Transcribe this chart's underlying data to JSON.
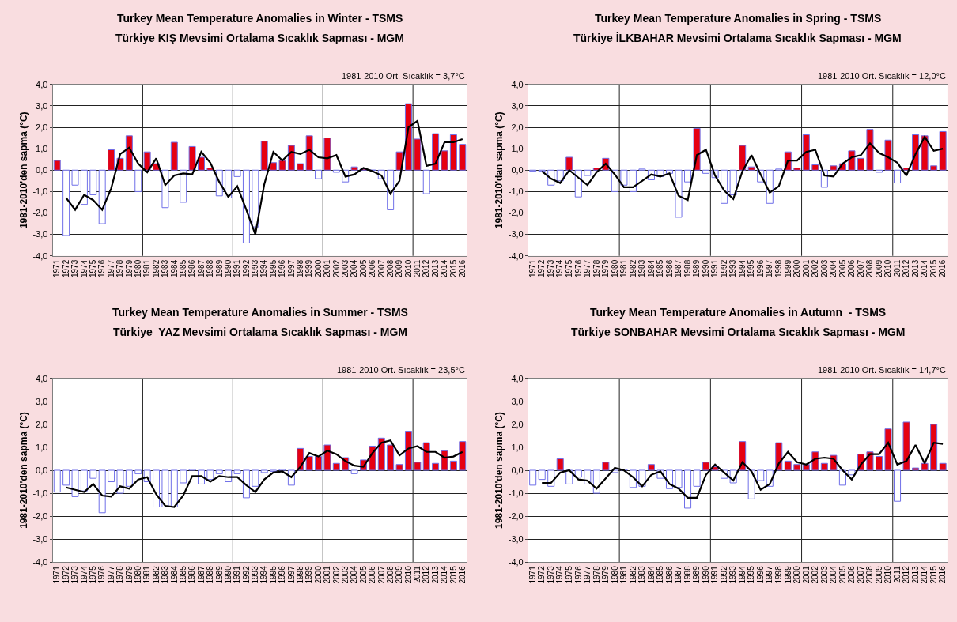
{
  "chart_data": [
    {
      "type": "bar",
      "title": "Turkey Mean Temperature Anomalies in Winter - TSMS",
      "subtitle": "Türkiye KIŞ Mevsimi Ortalama Sıcaklık Sapması - MGM",
      "ylabel": "1981-2010'den sapma (°C)",
      "annotations": [
        "1981-2010 Ort. Sıcaklık = 3,7°C"
      ],
      "categories": [
        "1971",
        "1972",
        "1973",
        "1974",
        "1975",
        "1976",
        "1977",
        "1978",
        "1979",
        "1980",
        "1981",
        "1982",
        "1983",
        "1984",
        "1985",
        "1986",
        "1987",
        "1988",
        "1989",
        "1990",
        "1991",
        "1992",
        "1993",
        "1994",
        "1995",
        "1996",
        "1997",
        "1998",
        "1999",
        "2000",
        "2001",
        "2002",
        "2003",
        "2004",
        "2005",
        "2006",
        "2007",
        "2008",
        "2009",
        "2010",
        "2011",
        "2012",
        "2013",
        "2014",
        "2015",
        "2016"
      ],
      "series": [
        {
          "values": [
            0.45,
            -3.05,
            -0.7,
            -1.6,
            -1.15,
            -2.5,
            0.95,
            0.55,
            1.6,
            -1.0,
            0.85,
            0.3,
            -1.75,
            1.3,
            -1.5,
            1.1,
            0.6,
            0.1,
            -1.2,
            -1.3,
            -0.3,
            -3.4,
            -2.65,
            1.35,
            0.35,
            0.45,
            1.15,
            0.3,
            1.6,
            -0.4,
            1.5,
            -0.1,
            -0.55,
            0.15,
            0.05,
            0.0,
            -0.4,
            -1.85,
            0.85,
            3.1,
            1.45,
            -1.1,
            1.7,
            0.9,
            1.65,
            1.2
          ],
          "colors": [
            "#e60012",
            "#ffffff",
            "#ffffff",
            "#ffffff",
            "#ffffff",
            "#ffffff",
            "#e60012",
            "#e60012",
            "#e60012",
            "#ffffff",
            "#e60012",
            "#e60012",
            "#ffffff",
            "#e60012",
            "#ffffff",
            "#e60012",
            "#e60012",
            "#e60012",
            "#ffffff",
            "#ffffff",
            "#ffffff",
            "#ffffff",
            "#ffffff",
            "#e60012",
            "#e60012",
            "#e60012",
            "#e60012",
            "#e60012",
            "#e60012",
            "#ffffff",
            "#e60012",
            "#ffffff",
            "#ffffff",
            "#e60012",
            "#e60012",
            "#6f6fe8",
            "#ffffff",
            "#ffffff",
            "#e60012",
            "#e60012",
            "#e60012",
            "#ffffff",
            "#e60012",
            "#e60012",
            "#e60012",
            "#e60012"
          ]
        },
        {
          "type": "line",
          "color": "#000000",
          "values": [
            null,
            -1.3,
            -1.85,
            -1.15,
            -1.4,
            -1.85,
            -0.85,
            0.75,
            1.05,
            0.3,
            -0.1,
            0.55,
            -0.7,
            -0.25,
            -0.15,
            -0.2,
            0.85,
            0.35,
            -0.55,
            -1.25,
            -0.75,
            -1.85,
            -3.0,
            -0.65,
            0.85,
            0.45,
            0.85,
            0.75,
            0.95,
            0.6,
            0.55,
            0.7,
            -0.3,
            -0.2,
            0.1,
            -0.05,
            -0.25,
            -1.1,
            -0.5,
            2.0,
            2.3,
            0.2,
            0.3,
            1.3,
            1.3,
            1.45
          ]
        }
      ],
      "ylim": [
        -4,
        4
      ],
      "yticks": [
        {
          "value": 4,
          "label": "4,0"
        },
        {
          "value": 3,
          "label": "3,0"
        },
        {
          "value": 2,
          "label": "2,0"
        },
        {
          "value": 1,
          "label": "1,0"
        },
        {
          "value": 0,
          "label": "0,0"
        },
        {
          "value": -1,
          "label": "-1,0"
        },
        {
          "value": -2,
          "label": "-2,0"
        },
        {
          "value": -3,
          "label": "-3,0"
        },
        {
          "value": -4,
          "label": "-4,0"
        }
      ],
      "grid": true,
      "marker": "none",
      "line_style": "solid"
    },
    {
      "type": "bar",
      "title": "Turkey Mean Temperature Anomalies in Spring - TSMS",
      "subtitle": "Türkiye İLKBAHAR Mevsimi Ortalama Sıcaklık Sapması - MGM",
      "ylabel": "1981-2010'dan sapma (°C)",
      "annotations": [
        "1981-2010 Ort. Sıcaklık = 12,0°C"
      ],
      "categories": [
        "1971",
        "1972",
        "1973",
        "1974",
        "1975",
        "1976",
        "1977",
        "1978",
        "1979",
        "1980",
        "1981",
        "1982",
        "1983",
        "1984",
        "1985",
        "1986",
        "1987",
        "1988",
        "1989",
        "1990",
        "1991",
        "1992",
        "1993",
        "1994",
        "1995",
        "1996",
        "1997",
        "1998",
        "1999",
        "2000",
        "2001",
        "2002",
        "2003",
        "2004",
        "2005",
        "2006",
        "2007",
        "2008",
        "2009",
        "2010",
        "2011",
        "2012",
        "2013",
        "2014",
        "2015",
        "2016"
      ],
      "series": [
        {
          "values": [
            -0.05,
            -0.05,
            -0.7,
            -0.5,
            0.6,
            -1.25,
            -0.25,
            0.1,
            0.55,
            -1.0,
            -0.7,
            -1.0,
            0.05,
            -0.45,
            -0.3,
            -0.15,
            -2.2,
            -0.55,
            1.95,
            -0.15,
            -0.35,
            -1.55,
            -1.15,
            1.15,
            0.15,
            -0.55,
            -1.55,
            0.05,
            0.85,
            0.1,
            1.65,
            0.25,
            -0.8,
            0.2,
            0.3,
            0.9,
            0.55,
            1.9,
            -0.1,
            1.4,
            -0.6,
            0.1,
            1.65,
            1.6,
            0.2,
            1.8
          ],
          "colors": [
            "#ffffff",
            "#ffffff",
            "#ffffff",
            "#ffffff",
            "#e60012",
            "#ffffff",
            "#ffffff",
            "#e60012",
            "#e60012",
            "#ffffff",
            "#ffffff",
            "#ffffff",
            "#ffffff",
            "#ffffff",
            "#ffffff",
            "#ffffff",
            "#ffffff",
            "#ffffff",
            "#e60012",
            "#ffffff",
            "#ffffff",
            "#ffffff",
            "#ffffff",
            "#e60012",
            "#e60012",
            "#ffffff",
            "#ffffff",
            "#ffffff",
            "#e60012",
            "#e60012",
            "#e60012",
            "#e60012",
            "#ffffff",
            "#e60012",
            "#e60012",
            "#e60012",
            "#e60012",
            "#e60012",
            "#ffffff",
            "#e60012",
            "#ffffff",
            "#e60012",
            "#e60012",
            "#e60012",
            "#e60012",
            "#e60012"
          ]
        },
        {
          "type": "line",
          "color": "#000000",
          "values": [
            null,
            -0.05,
            -0.4,
            -0.6,
            0.0,
            -0.35,
            -0.7,
            -0.1,
            0.3,
            -0.2,
            -0.8,
            -0.8,
            -0.5,
            -0.2,
            -0.3,
            -0.15,
            -1.2,
            -1.4,
            0.7,
            0.95,
            -0.25,
            -0.95,
            -1.35,
            -0.05,
            0.7,
            -0.2,
            -1.05,
            -0.75,
            0.45,
            0.45,
            0.85,
            0.95,
            -0.25,
            -0.3,
            0.3,
            0.6,
            0.7,
            1.25,
            0.8,
            0.6,
            0.35,
            -0.25,
            0.75,
            1.55,
            0.9,
            1.0
          ]
        }
      ],
      "ylim": [
        -4,
        4
      ],
      "yticks": [
        {
          "value": 4,
          "label": "4,0"
        },
        {
          "value": 3,
          "label": "3,0"
        },
        {
          "value": 2,
          "label": "2,0"
        },
        {
          "value": 1,
          "label": "1,0"
        },
        {
          "value": 0,
          "label": "0,0"
        },
        {
          "value": -1,
          "label": "-1,0"
        },
        {
          "value": -2,
          "label": "-2,0"
        },
        {
          "value": -3,
          "label": "-3,0"
        },
        {
          "value": -4,
          "label": "-4,0"
        }
      ],
      "grid": true,
      "marker": "none",
      "line_style": "solid"
    },
    {
      "type": "bar",
      "title": "Turkey Mean Temperature Anomalies in Summer - TSMS",
      "subtitle": "Türkiye  YAZ Mevsimi Ortalama Sıcaklık Sapması - MGM",
      "ylabel": "1981-2010'den sapma (°C)",
      "annotations": [
        "1981-2010 Ort. Sıcaklık = 23,5°C"
      ],
      "categories": [
        "1971",
        "1972",
        "1973",
        "1974",
        "1975",
        "1976",
        "1977",
        "1978",
        "1979",
        "1980",
        "1981",
        "1982",
        "1983",
        "1984",
        "1985",
        "1986",
        "1987",
        "1988",
        "1989",
        "1990",
        "1991",
        "1992",
        "1993",
        "1994",
        "1995",
        "1996",
        "1997",
        "1998",
        "1999",
        "2000",
        "2001",
        "2002",
        "2003",
        "2004",
        "2005",
        "2006",
        "2007",
        "2008",
        "2009",
        "2010",
        "2011",
        "2012",
        "2013",
        "2014",
        "2015",
        "2016"
      ],
      "series": [
        {
          "values": [
            -0.95,
            -0.65,
            -1.15,
            -0.9,
            -0.35,
            -1.85,
            -0.5,
            -1.0,
            -0.7,
            -0.15,
            -0.5,
            -1.6,
            -1.6,
            -1.6,
            -0.55,
            0.05,
            -0.6,
            -0.4,
            -0.15,
            -0.5,
            -0.15,
            -1.2,
            -0.7,
            -0.1,
            -0.05,
            0.05,
            -0.65,
            0.95,
            0.6,
            0.6,
            1.1,
            0.3,
            0.55,
            -0.15,
            0.45,
            1.05,
            1.4,
            1.1,
            0.25,
            1.7,
            0.35,
            1.2,
            0.3,
            0.85,
            0.4,
            1.25
          ],
          "colors": [
            "#ffffff",
            "#ffffff",
            "#ffffff",
            "#ffffff",
            "#ffffff",
            "#ffffff",
            "#ffffff",
            "#ffffff",
            "#ffffff",
            "#ffffff",
            "#ffffff",
            "#ffffff",
            "#ffffff",
            "#ffffff",
            "#ffffff",
            "#ffffff",
            "#ffffff",
            "#ffffff",
            "#ffffff",
            "#ffffff",
            "#ffffff",
            "#ffffff",
            "#ffffff",
            "#ffffff",
            "#ffffff",
            "#ffffff",
            "#ffffff",
            "#e60012",
            "#e60012",
            "#e60012",
            "#e60012",
            "#e60012",
            "#e60012",
            "#ffffff",
            "#e60012",
            "#e60012",
            "#e60012",
            "#e60012",
            "#e60012",
            "#e60012",
            "#e60012",
            "#e60012",
            "#e60012",
            "#e60012",
            "#e60012",
            "#e60012"
          ]
        },
        {
          "type": "line",
          "color": "#000000",
          "values": [
            null,
            -0.75,
            -0.85,
            -0.95,
            -0.6,
            -1.1,
            -1.15,
            -0.7,
            -0.8,
            -0.4,
            -0.3,
            -1.05,
            -1.55,
            -1.6,
            -1.1,
            -0.25,
            -0.25,
            -0.5,
            -0.25,
            -0.3,
            -0.3,
            -0.65,
            -0.95,
            -0.4,
            -0.1,
            -0.05,
            -0.3,
            0.15,
            0.75,
            0.6,
            0.85,
            0.7,
            0.4,
            0.2,
            0.15,
            0.75,
            1.2,
            1.3,
            0.65,
            0.95,
            1.05,
            0.8,
            0.8,
            0.55,
            0.6,
            0.8
          ]
        }
      ],
      "ylim": [
        -4,
        4
      ],
      "yticks": [
        {
          "value": 4,
          "label": "4,0"
        },
        {
          "value": 3,
          "label": "3,0"
        },
        {
          "value": 2,
          "label": "2,0"
        },
        {
          "value": 1,
          "label": "1,0"
        },
        {
          "value": 0,
          "label": "0,0"
        },
        {
          "value": -1,
          "label": "-1,0"
        },
        {
          "value": -2,
          "label": "-2,0"
        },
        {
          "value": -3,
          "label": "-3,0"
        },
        {
          "value": -4,
          "label": "-4,0"
        }
      ],
      "grid": true,
      "marker": "none",
      "line_style": "solid"
    },
    {
      "type": "bar",
      "title": "Turkey Mean Temperature Anomalies in Autumn  - TSMS",
      "subtitle": "Türkiye SONBAHAR Mevsimi Ortalama Sıcaklık Sapması - MGM",
      "ylabel": "1981-2010'den sapma (°C)",
      "annotations": [
        "1981-2010 Ort. Sıcaklık = 14,7°C"
      ],
      "categories": [
        "1971",
        "1972",
        "1973",
        "1974",
        "1975",
        "1976",
        "1977",
        "1978",
        "1979",
        "1980",
        "1981",
        "1982",
        "1983",
        "1984",
        "1985",
        "1986",
        "1987",
        "1988",
        "1989",
        "1990",
        "1991",
        "1992",
        "1993",
        "1994",
        "1995",
        "1996",
        "1997",
        "1998",
        "1999",
        "2000",
        "2001",
        "2002",
        "2003",
        "2004",
        "2005",
        "2006",
        "2007",
        "2008",
        "2009",
        "2010",
        "2011",
        "2012",
        "2013",
        "2014",
        "2015",
        "2016"
      ],
      "series": [
        {
          "values": [
            -0.65,
            -0.4,
            -0.7,
            0.5,
            -0.6,
            -0.3,
            -0.6,
            -1.0,
            0.35,
            -0.1,
            0.05,
            -0.75,
            -0.7,
            0.25,
            -0.35,
            -0.8,
            -0.75,
            -1.65,
            -0.7,
            0.35,
            0.15,
            -0.35,
            -0.55,
            1.25,
            -1.25,
            -0.45,
            -0.7,
            1.2,
            0.4,
            0.25,
            0.25,
            0.8,
            0.3,
            0.65,
            -0.65,
            -0.2,
            0.7,
            0.8,
            0.6,
            1.8,
            -1.35,
            2.1,
            0.1,
            0.3,
            2.0,
            0.3
          ],
          "colors": [
            "#ffffff",
            "#ffffff",
            "#ffffff",
            "#e60012",
            "#ffffff",
            "#ffffff",
            "#ffffff",
            "#ffffff",
            "#e60012",
            "#ffffff",
            "#ffffff",
            "#ffffff",
            "#ffffff",
            "#e60012",
            "#ffffff",
            "#ffffff",
            "#ffffff",
            "#ffffff",
            "#ffffff",
            "#e60012",
            "#e60012",
            "#ffffff",
            "#ffffff",
            "#e60012",
            "#ffffff",
            "#ffffff",
            "#ffffff",
            "#e60012",
            "#e60012",
            "#e60012",
            "#e60012",
            "#e60012",
            "#e60012",
            "#e60012",
            "#ffffff",
            "#ffffff",
            "#e60012",
            "#e60012",
            "#e60012",
            "#e60012",
            "#ffffff",
            "#e60012",
            "#e60012",
            "#e60012",
            "#e60012",
            "#e60012"
          ]
        },
        {
          "type": "line",
          "color": "#000000",
          "values": [
            null,
            -0.55,
            -0.55,
            -0.1,
            0.0,
            -0.4,
            -0.45,
            -0.8,
            -0.35,
            0.1,
            0.0,
            -0.3,
            -0.7,
            -0.2,
            -0.05,
            -0.6,
            -0.8,
            -1.2,
            -1.2,
            -0.2,
            0.25,
            -0.1,
            -0.45,
            0.35,
            -0.05,
            -0.85,
            -0.6,
            0.3,
            0.8,
            0.35,
            0.25,
            0.5,
            0.55,
            0.5,
            0.0,
            -0.4,
            0.25,
            0.7,
            0.7,
            1.2,
            0.25,
            0.4,
            1.1,
            0.3,
            1.2,
            1.15
          ]
        }
      ],
      "ylim": [
        -4,
        4
      ],
      "yticks": [
        {
          "value": 4,
          "label": "4,0"
        },
        {
          "value": 3,
          "label": "3,0"
        },
        {
          "value": 2,
          "label": "2,0"
        },
        {
          "value": 1,
          "label": "1,0"
        },
        {
          "value": 0,
          "label": "0,0"
        },
        {
          "value": -1,
          "label": "-1,0"
        },
        {
          "value": -2,
          "label": "-2,0"
        },
        {
          "value": -3,
          "label": "-3,0"
        },
        {
          "value": -4,
          "label": "-4,0"
        }
      ],
      "grid": true,
      "marker": "none",
      "line_style": "solid"
    }
  ]
}
